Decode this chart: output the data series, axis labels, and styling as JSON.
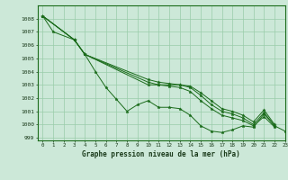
{
  "title": "Graphe pression niveau de la mer (hPa)",
  "xlim": [
    -0.5,
    23
  ],
  "ylim": [
    998.8,
    1009.0
  ],
  "yticks": [
    999,
    1000,
    1001,
    1002,
    1003,
    1004,
    1005,
    1006,
    1007,
    1008
  ],
  "xticks": [
    0,
    1,
    2,
    3,
    4,
    5,
    6,
    7,
    8,
    9,
    10,
    11,
    12,
    13,
    14,
    15,
    16,
    17,
    18,
    19,
    20,
    21,
    22,
    23
  ],
  "background_color": "#cce8d8",
  "grid_color": "#99ccaa",
  "line_color": "#1a6b1a",
  "series": [
    [
      1008.2,
      1007.0,
      null,
      1006.4,
      1005.3,
      1004.0,
      1002.8,
      1001.9,
      1001.0,
      1001.5,
      1001.8,
      1001.3,
      1001.3,
      1001.2,
      1000.7,
      999.9,
      999.5,
      999.4,
      999.6,
      999.9,
      999.8,
      1000.8,
      999.9,
      999.5
    ],
    [
      1008.2,
      null,
      null,
      1006.4,
      1005.3,
      null,
      null,
      null,
      null,
      null,
      1003.0,
      1003.0,
      1002.9,
      1002.8,
      1002.5,
      1001.8,
      1001.2,
      1000.7,
      1000.5,
      1000.3,
      999.9,
      1000.6,
      999.8,
      null
    ],
    [
      1008.2,
      null,
      null,
      1006.4,
      1005.3,
      null,
      null,
      null,
      null,
      null,
      1003.2,
      1003.0,
      1003.0,
      1003.0,
      1002.8,
      1002.2,
      1001.5,
      1001.0,
      1000.8,
      1000.5,
      1000.0,
      1000.9,
      999.9,
      null
    ],
    [
      1008.2,
      null,
      null,
      1006.4,
      1005.3,
      null,
      null,
      null,
      null,
      null,
      1003.4,
      1003.2,
      1003.1,
      1003.0,
      1002.9,
      1002.4,
      1001.8,
      1001.2,
      1001.0,
      1000.7,
      1000.2,
      1001.1,
      1000.0,
      null
    ]
  ]
}
